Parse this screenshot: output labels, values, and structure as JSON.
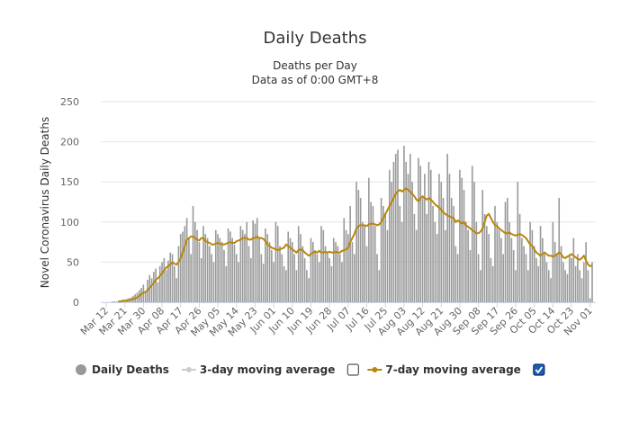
{
  "chart_data": {
    "type": "bar",
    "title": "Daily Deaths",
    "subtitle": [
      "Deaths per Day",
      "Data as of 0:00 GMT+8"
    ],
    "y_label": "Novel Coronavirus Daily Deaths",
    "ylim": [
      0,
      250
    ],
    "yticks": [
      0,
      50,
      100,
      150,
      200,
      250
    ],
    "grid": true,
    "categories": [
      "Mar 12",
      null,
      null,
      null,
      null,
      null,
      null,
      null,
      null,
      "Mar 21",
      null,
      null,
      null,
      null,
      null,
      null,
      null,
      null,
      "Mar 30",
      null,
      null,
      null,
      null,
      null,
      null,
      null,
      null,
      "Apr 08",
      null,
      null,
      null,
      null,
      null,
      null,
      null,
      null,
      "Apr 17",
      null,
      null,
      null,
      null,
      null,
      null,
      null,
      null,
      "Apr 26",
      null,
      null,
      null,
      null,
      null,
      null,
      null,
      null,
      "May 05",
      null,
      null,
      null,
      null,
      null,
      null,
      null,
      null,
      "May 14",
      null,
      null,
      null,
      null,
      null,
      null,
      null,
      null,
      "May 23",
      null,
      null,
      null,
      null,
      null,
      null,
      null,
      null,
      "Jun 01",
      null,
      null,
      null,
      null,
      null,
      null,
      null,
      null,
      "Jun 10",
      null,
      null,
      null,
      null,
      null,
      null,
      null,
      null,
      "Jun 19",
      null,
      null,
      null,
      null,
      null,
      null,
      null,
      null,
      "Jun 28",
      null,
      null,
      null,
      null,
      null,
      null,
      null,
      null,
      "Jul 07",
      null,
      null,
      null,
      null,
      null,
      null,
      null,
      null,
      "Jul 16",
      null,
      null,
      null,
      null,
      null,
      null,
      null,
      null,
      "Jul 25",
      null,
      null,
      null,
      null,
      null,
      null,
      null,
      null,
      "Aug 03",
      null,
      null,
      null,
      null,
      null,
      null,
      null,
      null,
      "Aug 12",
      null,
      null,
      null,
      null,
      null,
      null,
      null,
      null,
      "Aug 21",
      null,
      null,
      null,
      null,
      null,
      null,
      null,
      null,
      "Aug 30",
      null,
      null,
      null,
      null,
      null,
      null,
      null,
      null,
      "Sep 08",
      null,
      null,
      null,
      null,
      null,
      null,
      null,
      null,
      "Sep 17",
      null,
      null,
      null,
      null,
      null,
      null,
      null,
      null,
      "Sep 26",
      null,
      null,
      null,
      null,
      null,
      null,
      null,
      null,
      "Oct 05",
      null,
      null,
      null,
      null,
      null,
      null,
      null,
      null,
      "Oct 14",
      null,
      null,
      null,
      null,
      null,
      null,
      null,
      null,
      "Oct 23",
      null,
      null,
      null,
      null,
      null,
      null,
      null,
      null,
      "Nov 01",
      null
    ],
    "series": [
      {
        "name": "Daily Deaths",
        "type": "bar",
        "color": "#999999",
        "visible": true,
        "values": [
          0,
          0,
          0,
          1,
          1,
          1,
          2,
          2,
          3,
          3,
          4,
          5,
          6,
          8,
          10,
          12,
          15,
          18,
          22,
          14,
          28,
          34,
          30,
          38,
          42,
          25,
          45,
          50,
          55,
          40,
          52,
          62,
          60,
          45,
          30,
          70,
          85,
          88,
          95,
          105,
          80,
          60,
          120,
          100,
          90,
          75,
          55,
          95,
          85,
          80,
          70,
          60,
          50,
          90,
          85,
          80,
          75,
          65,
          45,
          92,
          88,
          80,
          72,
          60,
          50,
          95,
          90,
          85,
          100,
          70,
          55,
          102,
          98,
          105,
          80,
          60,
          48,
          92,
          85,
          75,
          65,
          50,
          100,
          95,
          70,
          60,
          45,
          40,
          88,
          80,
          75,
          60,
          40,
          95,
          85,
          70,
          55,
          40,
          30,
          80,
          75,
          65,
          60,
          50,
          95,
          90,
          70,
          62,
          55,
          45,
          80,
          75,
          70,
          60,
          50,
          105,
          90,
          85,
          120,
          75,
          60,
          150,
          140,
          130,
          100,
          95,
          70,
          155,
          125,
          120,
          95,
          60,
          40,
          130,
          120,
          110,
          90,
          165,
          150,
          175,
          185,
          190,
          120,
          100,
          195,
          175,
          160,
          185,
          150,
          110,
          90,
          180,
          170,
          130,
          160,
          110,
          175,
          165,
          120,
          100,
          85,
          160,
          150,
          130,
          90,
          185,
          160,
          130,
          120,
          70,
          60,
          165,
          155,
          140,
          100,
          90,
          65,
          170,
          150,
          100,
          60,
          40,
          140,
          110,
          95,
          85,
          55,
          45,
          120,
          100,
          90,
          80,
          60,
          125,
          130,
          100,
          80,
          65,
          40,
          150,
          110,
          80,
          70,
          60,
          40,
          100,
          90,
          70,
          55,
          45,
          95,
          80,
          60,
          50,
          40,
          30,
          100,
          75,
          60,
          130,
          70,
          50,
          40,
          35,
          60,
          55,
          80,
          45,
          60,
          40,
          30,
          50,
          75,
          40,
          5,
          50
        ]
      },
      {
        "name": "3-day moving average",
        "type": "line",
        "color": "#cccccc",
        "visible": false,
        "checked": false
      },
      {
        "name": "7-day moving average",
        "type": "line",
        "color": "#b8860b",
        "visible": true,
        "checked": true,
        "values": [
          null,
          null,
          null,
          null,
          null,
          null,
          1,
          1,
          2,
          2,
          2,
          3,
          3,
          4,
          5,
          6,
          8,
          10,
          12,
          13,
          15,
          18,
          21,
          24,
          28,
          30,
          33,
          36,
          40,
          43,
          45,
          47,
          50,
          48,
          47,
          50,
          55,
          62,
          70,
          78,
          80,
          82,
          82,
          80,
          78,
          77,
          80,
          80,
          76,
          75,
          74,
          72,
          72,
          73,
          74,
          73,
          72,
          72,
          73,
          74,
          75,
          74,
          74,
          76,
          77,
          78,
          80,
          80,
          80,
          78,
          78,
          80,
          80,
          82,
          80,
          80,
          79,
          76,
          72,
          70,
          68,
          67,
          66,
          65,
          66,
          67,
          68,
          72,
          70,
          68,
          66,
          64,
          62,
          65,
          66,
          65,
          62,
          60,
          58,
          60,
          62,
          63,
          62,
          64,
          62,
          62,
          63,
          62,
          63,
          62,
          62,
          63,
          62,
          62,
          64,
          65,
          66,
          68,
          75,
          80,
          85,
          92,
          95,
          96,
          96,
          96,
          95,
          97,
          98,
          98,
          97,
          96,
          97,
          100,
          105,
          110,
          115,
          120,
          125,
          130,
          135,
          138,
          140,
          138,
          140,
          142,
          140,
          138,
          135,
          132,
          128,
          126,
          130,
          132,
          130,
          128,
          130,
          128,
          125,
          122,
          120,
          118,
          115,
          112,
          110,
          108,
          107,
          106,
          105,
          100,
          102,
          100,
          98,
          100,
          96,
          94,
          92,
          90,
          88,
          86,
          86,
          88,
          92,
          100,
          108,
          110,
          105,
          100,
          96,
          95,
          92,
          90,
          88,
          86,
          86,
          87,
          85,
          84,
          83,
          84,
          85,
          84,
          82,
          80,
          76,
          72,
          70,
          66,
          62,
          60,
          58,
          60,
          62,
          60,
          58,
          58,
          57,
          58,
          60,
          62,
          60,
          56,
          55,
          57,
          58,
          60,
          58,
          56,
          54,
          53,
          55,
          58,
          52,
          47,
          45,
          46
        ]
      }
    ]
  }
}
